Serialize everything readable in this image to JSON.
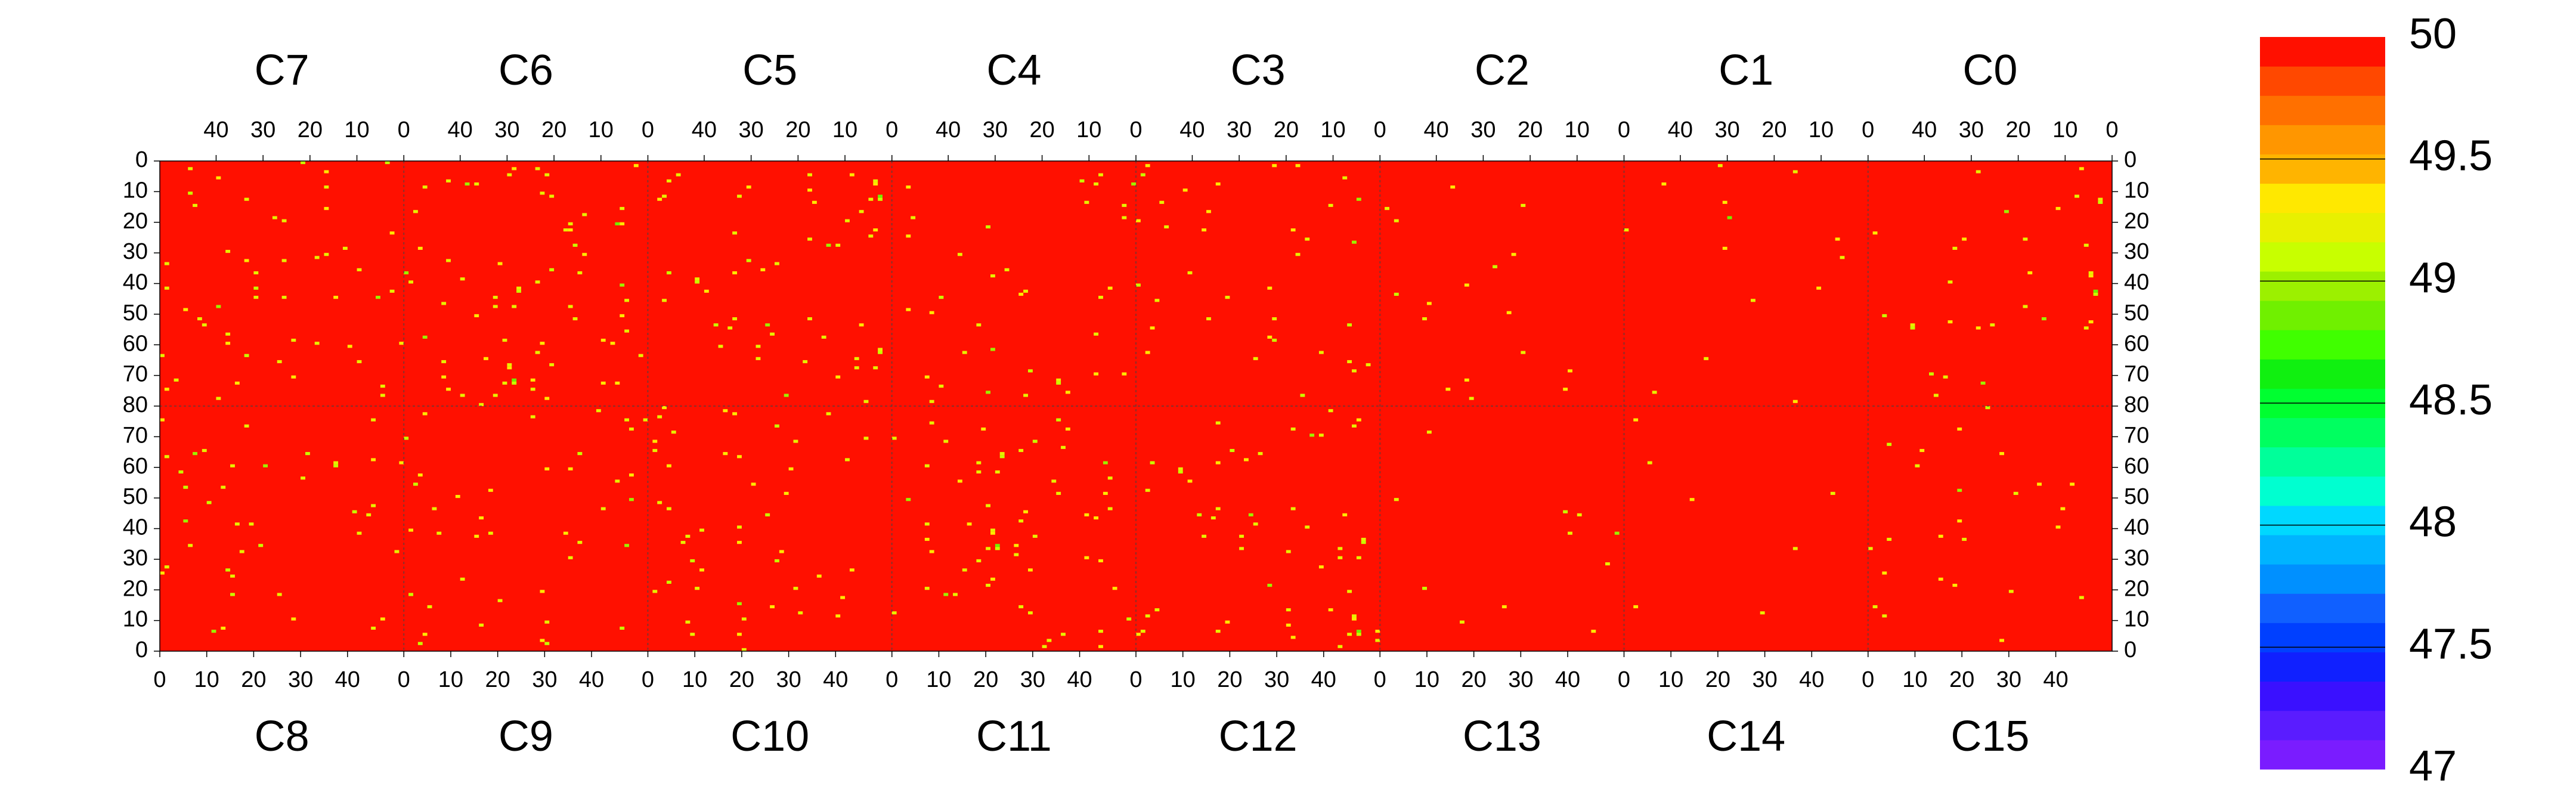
{
  "chart_data": {
    "type": "heatmap",
    "title": "",
    "xlabel": "",
    "ylabel": "",
    "top_labels": [
      "C7",
      "C6",
      "C5",
      "C4",
      "C3",
      "C2",
      "C1",
      "C0"
    ],
    "bottom_labels": [
      "C8",
      "C9",
      "C10",
      "C11",
      "C12",
      "C13",
      "C14",
      "C15"
    ],
    "top_x_tick_labels": [
      "40",
      "30",
      "20",
      "10",
      "0"
    ],
    "top_x_ticks": [
      40,
      30,
      20,
      10,
      0
    ],
    "bottom_x_tick_labels": [
      "0",
      "10",
      "20",
      "30",
      "40"
    ],
    "bottom_x_ticks": [
      0,
      10,
      20,
      30,
      40
    ],
    "columns_per_module": 52,
    "rows_per_half": 80,
    "top_y_tick_labels": [
      "0",
      "10",
      "20",
      "30",
      "40",
      "50",
      "60",
      "70",
      "80"
    ],
    "top_y_ticks": [
      0,
      10,
      20,
      30,
      40,
      50,
      60,
      70,
      80
    ],
    "bottom_y_tick_labels": [
      "70",
      "60",
      "50",
      "40",
      "30",
      "20",
      "10",
      "0"
    ],
    "bottom_y_ticks": [
      70,
      60,
      50,
      40,
      30,
      20,
      10,
      0
    ],
    "background_value": 50,
    "zlim": [
      47,
      50
    ],
    "colorbar": {
      "labels": [
        "50",
        "49.5",
        "49",
        "48.5",
        "48",
        "47.5",
        "47"
      ],
      "label_values": [
        50,
        49.5,
        49,
        48.5,
        48,
        47.5,
        47
      ],
      "colors": [
        "#7a1cff",
        "#5a1cff",
        "#3a10ff",
        "#1020ff",
        "#0040ff",
        "#1060ff",
        "#0090ff",
        "#00b4ff",
        "#00d8ff",
        "#00ffd0",
        "#00ff9a",
        "#00ff60",
        "#00ff30",
        "#10f010",
        "#40ff00",
        "#70f000",
        "#9cf000",
        "#c8ff00",
        "#e8f000",
        "#ffe800",
        "#ffb400",
        "#ff9600",
        "#ff7000",
        "#ff4800",
        "#ff1000"
      ]
    },
    "outlier_values": [
      49.3,
      49.2,
      49.1,
      49.0,
      48.8,
      47.8
    ],
    "outlier_colors": [
      "#ffe800",
      "#e8f000",
      "#c8ff00",
      "#9cf000",
      "#70f000",
      "#4a8cff"
    ]
  }
}
